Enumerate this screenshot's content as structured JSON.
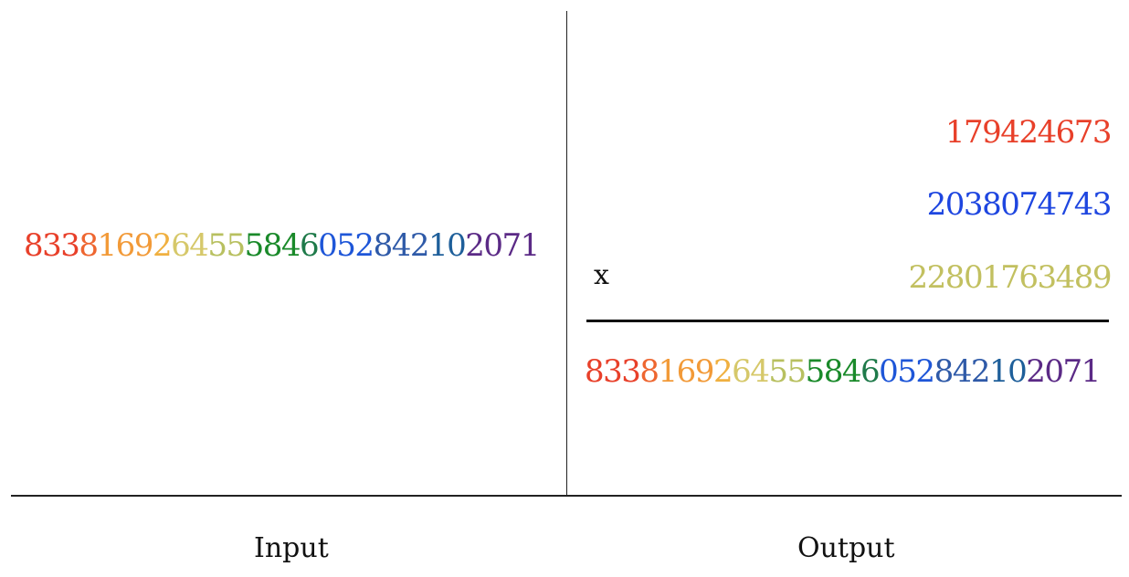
{
  "input": {
    "segments": [
      {
        "text": "833",
        "color": "#e8402a"
      },
      {
        "text": "8",
        "color": "#ee6630"
      },
      {
        "text": "169",
        "color": "#f29a38"
      },
      {
        "text": "2",
        "color": "#f0b040"
      },
      {
        "text": "64",
        "color": "#d6c86a"
      },
      {
        "text": "55",
        "color": "#b8c060"
      },
      {
        "text": "584",
        "color": "#1a8a2a"
      },
      {
        "text": "6",
        "color": "#1f7a4a"
      },
      {
        "text": "052",
        "color": "#1e56d8"
      },
      {
        "text": "842",
        "color": "#2f5aa8"
      },
      {
        "text": "10",
        "color": "#1e5f9a"
      },
      {
        "text": "2071",
        "color": "#5b2a86"
      }
    ]
  },
  "output": {
    "factors": [
      {
        "value": "179424673",
        "color": "#e8402a"
      },
      {
        "value": "2038074743",
        "color": "#1e46e0"
      },
      {
        "value": "22801763489",
        "color": "#c2c060"
      }
    ],
    "operator": "x",
    "result_segments": [
      {
        "text": "833",
        "color": "#e8402a"
      },
      {
        "text": "8",
        "color": "#ee6630"
      },
      {
        "text": "169",
        "color": "#f29a38"
      },
      {
        "text": "2",
        "color": "#f0b040"
      },
      {
        "text": "64",
        "color": "#d6c86a"
      },
      {
        "text": "55",
        "color": "#b8c060"
      },
      {
        "text": "584",
        "color": "#1a8a2a"
      },
      {
        "text": "6",
        "color": "#1f7a4a"
      },
      {
        "text": "052",
        "color": "#1e56d8"
      },
      {
        "text": "842",
        "color": "#2f5aa8"
      },
      {
        "text": "10",
        "color": "#1e5f9a"
      },
      {
        "text": "2071",
        "color": "#5b2a86"
      }
    ]
  },
  "captions": {
    "input": "Input",
    "output": "Output"
  }
}
